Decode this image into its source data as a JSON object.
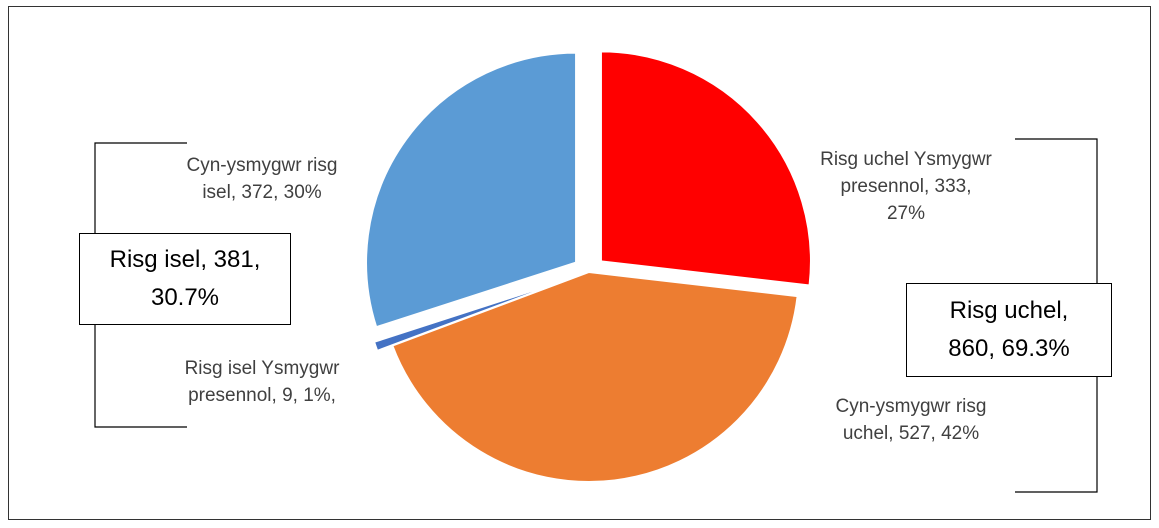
{
  "chart_data": {
    "type": "pie",
    "title": "",
    "slices": [
      {
        "label": "Risg uchel Ysmygwr presennol",
        "value": 333,
        "percent": "27%",
        "color": "#FF0000",
        "exploded": true,
        "label_lines": [
          "Risg uchel Ysmygwr",
          "presennol, 333,",
          "27%"
        ]
      },
      {
        "label": "Cyn-ysmygwr risg uchel",
        "value": 527,
        "percent": "42%",
        "color": "#ED7D31",
        "exploded": false,
        "label_lines": [
          "Cyn-ysmygwr risg",
          "uchel, 527, 42%"
        ]
      },
      {
        "label": "Risg isel Ysmygwr presennol",
        "value": 9,
        "percent": "1%",
        "color": "#4472C4",
        "exploded": true,
        "label_lines": [
          "Risg isel Ysmygwr",
          "presennol, 9, 1%,"
        ]
      },
      {
        "label": "Cyn-ysmygwr risg isel",
        "value": 372,
        "percent": "30%",
        "color": "#5B9BD5",
        "exploded": true,
        "label_lines": [
          "Cyn-ysmygwr risg",
          "isel, 372, 30%"
        ]
      }
    ],
    "groups": [
      {
        "name": "Risg isel",
        "value": 381,
        "percent": "30.7%",
        "text_lines": [
          "Risg isel, 381,",
          "30.7%"
        ]
      },
      {
        "name": "Risg uchel",
        "value": 860,
        "percent": "69.3%",
        "text_lines": [
          "Risg uchel,",
          "860, 69.3%"
        ]
      }
    ]
  }
}
